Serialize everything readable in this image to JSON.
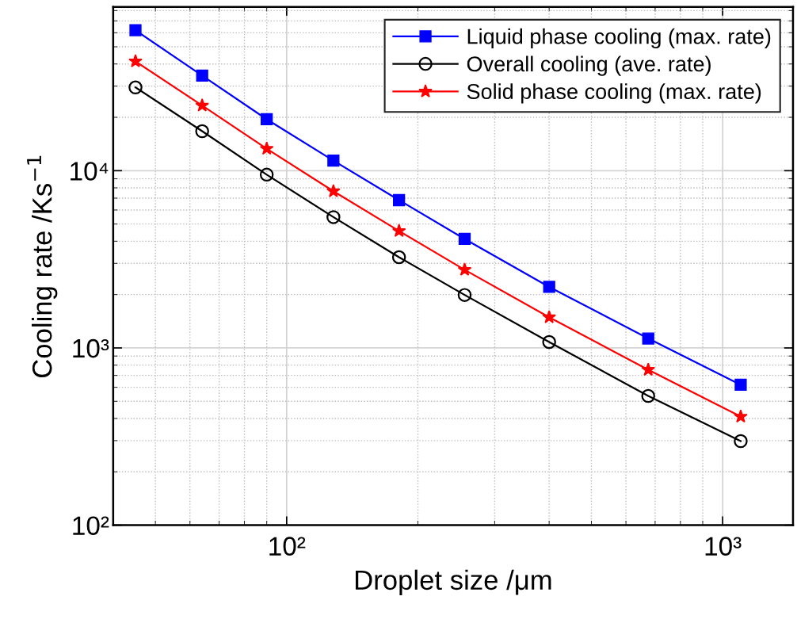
{
  "chart_data": {
    "type": "line",
    "xlabel": "Droplet size /μm",
    "ylabel": "Cooling rate /Ks$^{−1}$",
    "x": [
      45,
      64,
      90,
      128,
      181,
      256,
      400,
      675,
      1100
    ],
    "series": [
      {
        "name": "Liquid phase cooling (max. rate)",
        "color": "#0000ff",
        "marker": "square",
        "values": [
          62000,
          34400,
          19500,
          11400,
          6820,
          4120,
          2210,
          1130,
          620
        ]
      },
      {
        "name": "Overall cooling (ave. rate)",
        "color": "#000000",
        "marker": "circle",
        "values": [
          29500,
          16700,
          9500,
          5470,
          3250,
          1990,
          1080,
          536,
          298
        ]
      },
      {
        "name": "Solid phase cooling (max. rate)",
        "color": "#ff0000",
        "marker": "star",
        "values": [
          41400,
          23300,
          13300,
          7660,
          4570,
          2760,
          1490,
          753,
          410
        ]
      }
    ],
    "log": "xy",
    "xlim": [
      40,
      1450
    ],
    "ylim": [
      100,
      84000
    ],
    "xticks": [
      {
        "value": 100,
        "label": "10²"
      },
      {
        "value": 1000,
        "label": "10³"
      }
    ],
    "yticks": [
      {
        "value": 100,
        "label": "10²"
      },
      {
        "value": 1000,
        "label": "10³"
      },
      {
        "value": 10000,
        "label": "10⁴"
      }
    ],
    "grid": true,
    "legend": "top right",
    "line_style": "solid"
  }
}
